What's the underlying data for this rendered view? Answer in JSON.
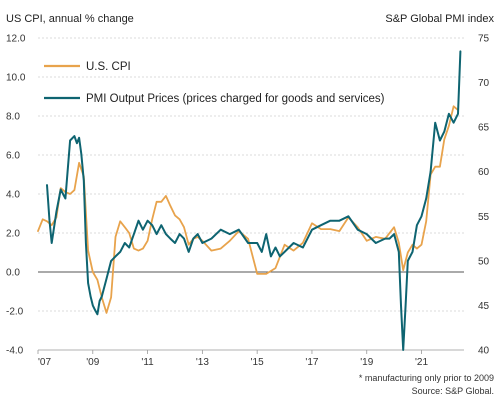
{
  "chart_data": {
    "type": "line",
    "left_axis_title": "US CPI, annual % change",
    "right_axis_title": "S&P Global PMI index",
    "left_ylim": [
      -4.0,
      12.0
    ],
    "left_ticks": [
      "12.0",
      "10.0",
      "8.0",
      "6.0",
      "4.0",
      "2.0",
      "0.0",
      "-2.0",
      "-4.0"
    ],
    "left_tick_values": [
      12,
      10,
      8,
      6,
      4,
      2,
      0,
      -2,
      -4
    ],
    "right_ylim": [
      40,
      75
    ],
    "right_ticks": [
      "75",
      "70",
      "65",
      "60",
      "55",
      "50",
      "45",
      "40"
    ],
    "right_tick_values": [
      75,
      70,
      65,
      60,
      55,
      50,
      45,
      40
    ],
    "x_range": [
      2007.0,
      2022.55
    ],
    "x_ticks": [
      "'07",
      "'09",
      "'11",
      "'13",
      "'15",
      "'17",
      "'19",
      "'21"
    ],
    "x_tick_values": [
      2007,
      2009,
      2011,
      2013,
      2015,
      2017,
      2019,
      2021
    ],
    "grid": "horizontal",
    "series": [
      {
        "name": "U.S. CPI",
        "axis": "left",
        "color": "#e8a34c",
        "x": [
          2007.0,
          2007.17,
          2007.33,
          2007.5,
          2007.67,
          2007.83,
          2008.0,
          2008.17,
          2008.33,
          2008.5,
          2008.67,
          2008.83,
          2009.0,
          2009.17,
          2009.33,
          2009.5,
          2009.67,
          2009.83,
          2010.0,
          2010.17,
          2010.33,
          2010.5,
          2010.67,
          2010.83,
          2011.0,
          2011.17,
          2011.33,
          2011.5,
          2011.67,
          2011.83,
          2012.0,
          2012.17,
          2012.33,
          2012.5,
          2012.67,
          2012.83,
          2013.0,
          2013.33,
          2013.67,
          2014.0,
          2014.33,
          2014.67,
          2015.0,
          2015.33,
          2015.67,
          2016.0,
          2016.33,
          2016.67,
          2017.0,
          2017.33,
          2017.67,
          2018.0,
          2018.33,
          2018.67,
          2019.0,
          2019.33,
          2019.67,
          2020.0,
          2020.17,
          2020.33,
          2020.5,
          2020.67,
          2020.83,
          2021.0,
          2021.17,
          2021.33,
          2021.5,
          2021.67,
          2021.83,
          2022.0,
          2022.17,
          2022.33
        ],
        "values": [
          2.1,
          2.7,
          2.6,
          2.4,
          2.8,
          4.3,
          4.1,
          4.0,
          4.2,
          5.6,
          4.9,
          1.1,
          0.0,
          -0.4,
          -1.3,
          -2.1,
          -1.3,
          1.8,
          2.6,
          2.3,
          2.0,
          1.2,
          1.1,
          1.2,
          1.6,
          2.7,
          3.6,
          3.6,
          3.9,
          3.4,
          2.9,
          2.7,
          2.3,
          1.4,
          1.7,
          1.8,
          1.6,
          1.1,
          1.2,
          1.6,
          2.1,
          1.7,
          -0.1,
          -0.1,
          0.2,
          1.4,
          1.1,
          1.5,
          2.5,
          2.2,
          2.2,
          2.1,
          2.8,
          2.3,
          1.6,
          1.8,
          1.7,
          2.3,
          1.5,
          0.1,
          1.0,
          1.4,
          1.2,
          1.4,
          2.6,
          5.0,
          5.4,
          5.4,
          6.8,
          7.5,
          8.5,
          8.3
        ]
      },
      {
        "name": "PMI Output Prices (prices charged for goods and services)",
        "axis": "right",
        "color": "#0e6471",
        "x": [
          2007.33,
          2007.42,
          2007.5,
          2007.67,
          2007.83,
          2008.0,
          2008.17,
          2008.33,
          2008.42,
          2008.5,
          2008.58,
          2008.67,
          2008.75,
          2008.83,
          2008.92,
          2009.0,
          2009.08,
          2009.17,
          2009.25,
          2009.33,
          2009.5,
          2009.67,
          2009.83,
          2010.0,
          2010.17,
          2010.33,
          2010.5,
          2010.67,
          2010.83,
          2011.0,
          2011.17,
          2011.33,
          2011.5,
          2011.67,
          2011.83,
          2012.0,
          2012.17,
          2012.33,
          2012.5,
          2012.67,
          2012.83,
          2013.0,
          2013.33,
          2013.67,
          2014.0,
          2014.33,
          2014.67,
          2015.0,
          2015.17,
          2015.33,
          2015.5,
          2015.67,
          2015.83,
          2016.0,
          2016.33,
          2016.67,
          2017.0,
          2017.33,
          2017.67,
          2018.0,
          2018.33,
          2018.67,
          2019.0,
          2019.33,
          2019.67,
          2019.83,
          2020.0,
          2020.17,
          2020.25,
          2020.33,
          2020.42,
          2020.5,
          2020.67,
          2020.83,
          2021.0,
          2021.17,
          2021.33,
          2021.5,
          2021.67,
          2021.83,
          2022.0,
          2022.17,
          2022.33,
          2022.42
        ],
        "values": [
          58.5,
          54.5,
          52.0,
          55.5,
          58.0,
          57.0,
          63.5,
          64.0,
          63.2,
          63.8,
          62.0,
          59.0,
          52.0,
          47.5,
          46.0,
          45.0,
          44.5,
          44.0,
          45.5,
          46.0,
          48.0,
          50.0,
          50.5,
          51.0,
          52.0,
          51.5,
          53.0,
          54.5,
          53.5,
          54.5,
          54.0,
          53.0,
          54.0,
          53.0,
          52.5,
          52.0,
          53.0,
          52.5,
          51.0,
          52.5,
          53.0,
          52.0,
          52.5,
          53.5,
          53.0,
          53.5,
          52.0,
          52.0,
          51.0,
          53.0,
          50.5,
          51.5,
          50.5,
          51.0,
          52.0,
          51.5,
          53.5,
          54.0,
          54.5,
          54.5,
          55.0,
          53.5,
          53.0,
          52.0,
          52.5,
          52.5,
          53.0,
          51.0,
          45.0,
          40.0,
          45.0,
          50.0,
          51.0,
          54.0,
          55.0,
          57.0,
          60.0,
          65.5,
          63.5,
          64.5,
          66.5,
          65.5,
          66.5,
          73.5
        ]
      }
    ],
    "footnote_1": "* manufacturing only prior to 2009",
    "footnote_2": "Source: S&P Global."
  }
}
